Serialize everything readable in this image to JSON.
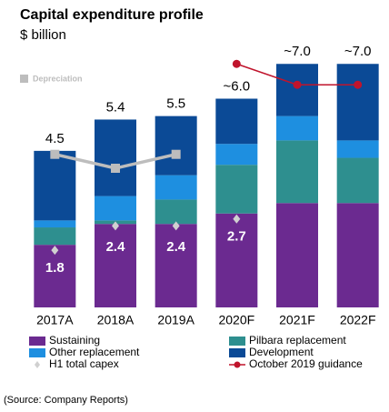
{
  "chart_data": {
    "type": "bar",
    "stacked": true,
    "title": "Capital expenditure profile",
    "subtitle": "$ billion",
    "categories": [
      "2017A",
      "2018A",
      "2019A",
      "2020F",
      "2021F",
      "2022F"
    ],
    "ylim": [
      0,
      8
    ],
    "series": [
      {
        "name": "Sustaining",
        "type": "bar",
        "color": "#6b2a90",
        "values": [
          1.8,
          2.4,
          2.4,
          2.7,
          3.0,
          3.0
        ],
        "value_labels": [
          "1.8",
          "2.4",
          "2.4",
          "2.7",
          null,
          null
        ]
      },
      {
        "name": "Pilbara replacement",
        "type": "bar",
        "color": "#2e8f8f",
        "values": [
          0.5,
          0.1,
          0.7,
          1.4,
          1.8,
          1.3
        ]
      },
      {
        "name": "Other replacement",
        "type": "bar",
        "color": "#1e8fe0",
        "values": [
          0.2,
          0.7,
          0.7,
          0.6,
          0.7,
          0.5
        ]
      },
      {
        "name": "Development",
        "type": "bar",
        "color": "#0b4a96",
        "values": [
          2.0,
          2.2,
          1.7,
          1.3,
          1.5,
          2.2
        ]
      },
      {
        "name": "H1 total capex",
        "type": "scatter",
        "color": "#d0d0d0",
        "values": [
          1.8,
          2.5,
          2.5,
          2.7,
          null,
          null
        ]
      },
      {
        "name": "October 2019 guidance",
        "type": "line",
        "color": "#c0142c",
        "values": [
          null,
          null,
          null,
          7.0,
          6.4,
          6.4
        ]
      }
    ],
    "depreciation": {
      "name": "Depreciation",
      "color": "#bdbdbd",
      "values": [
        4.4,
        4.0,
        4.4,
        null,
        null,
        null
      ]
    },
    "totals": {
      "values": [
        4.5,
        5.4,
        5.5,
        6.0,
        7.0,
        7.0
      ],
      "value_labels": [
        "4.5",
        "5.4",
        "5.5",
        "~6.0",
        "~7.0",
        "~7.0"
      ]
    },
    "source": "(Source: Company Reports)"
  }
}
